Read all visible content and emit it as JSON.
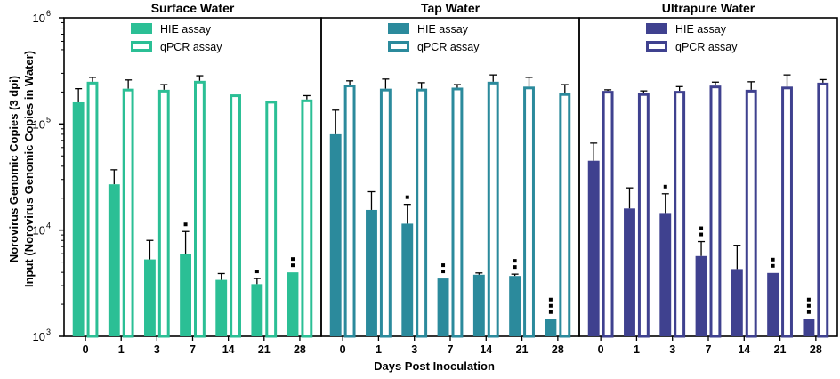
{
  "chart_data": {
    "type": "bar",
    "ylabel_line1": "Norovirus Genomic Copies (3 dpi)",
    "ylabel_line2": "Input (Norovirus Genomic Copies in Water)",
    "xlabel": "Days Post Inoculation",
    "yscale": "log",
    "ylim": [
      1000,
      1000000
    ],
    "y_ticks": [
      {
        "value": 1000,
        "base": "10",
        "exp": "3"
      },
      {
        "value": 10000,
        "base": "10",
        "exp": "4"
      },
      {
        "value": 100000,
        "base": "10",
        "exp": "5"
      },
      {
        "value": 1000000,
        "base": "10",
        "exp": "6"
      }
    ],
    "categories": [
      "0",
      "1",
      "3",
      "7",
      "14",
      "21",
      "28"
    ],
    "legend_position": "top-center of each panel",
    "panels": [
      {
        "title": "Surface Water",
        "color": "#2bbf95",
        "series": [
          {
            "name": "HIE assay",
            "style": "filled",
            "values": [
              160000,
              27000,
              5300,
              6000,
              3400,
              3100,
              4000
            ],
            "errors": [
              215000,
              37000,
              8000,
              9700,
              3900,
              3500,
              4000
            ],
            "marks": [
              "",
              "",
              "",
              "*",
              "",
              "*",
              "**"
            ]
          },
          {
            "name": "qPCR assay",
            "style": "outline",
            "values": [
              250000,
              215000,
              210000,
              255000,
              190000,
              165000,
              170000
            ],
            "errors": [
              275000,
              260000,
              235000,
              285000,
              190000,
              168000,
              185000
            ],
            "marks": [
              "",
              "",
              "",
              "",
              "",
              "",
              ""
            ]
          }
        ]
      },
      {
        "title": "Tap Water",
        "color": "#2b8a9c",
        "series": [
          {
            "name": "HIE assay",
            "style": "filled",
            "values": [
              80000,
              15500,
              11500,
              3500,
              3800,
              3700,
              1450
            ],
            "errors": [
              135000,
              23000,
              17500,
              3500,
              3950,
              3850,
              1450
            ],
            "marks": [
              "",
              "",
              "*",
              "**",
              "",
              "**",
              "***"
            ]
          },
          {
            "name": "qPCR assay",
            "style": "outline",
            "values": [
              235000,
              215000,
              215000,
              220000,
              250000,
              225000,
              195000
            ],
            "errors": [
              255000,
              265000,
              245000,
              235000,
              290000,
              275000,
              235000
            ],
            "marks": [
              "",
              "",
              "",
              "",
              "",
              "",
              ""
            ]
          }
        ]
      },
      {
        "title": "Ultrapure Water",
        "color": "#3f418f",
        "series": [
          {
            "name": "HIE assay",
            "style": "filled",
            "values": [
              45000,
              16000,
              14500,
              5700,
              4300,
              3950,
              1450
            ],
            "errors": [
              66000,
              25000,
              22000,
              7800,
              7200,
              3950,
              1450
            ],
            "marks": [
              "",
              "",
              "*",
              "**",
              "",
              "**",
              "***"
            ]
          },
          {
            "name": "qPCR assay",
            "style": "outline",
            "values": [
              205000,
              195000,
              205000,
              230000,
              210000,
              225000,
              245000
            ],
            "errors": [
              210000,
              205000,
              225000,
              248000,
              250000,
              290000,
              262000
            ],
            "marks": [
              "",
              "",
              "",
              "",
              "",
              "",
              ""
            ]
          }
        ]
      }
    ]
  }
}
